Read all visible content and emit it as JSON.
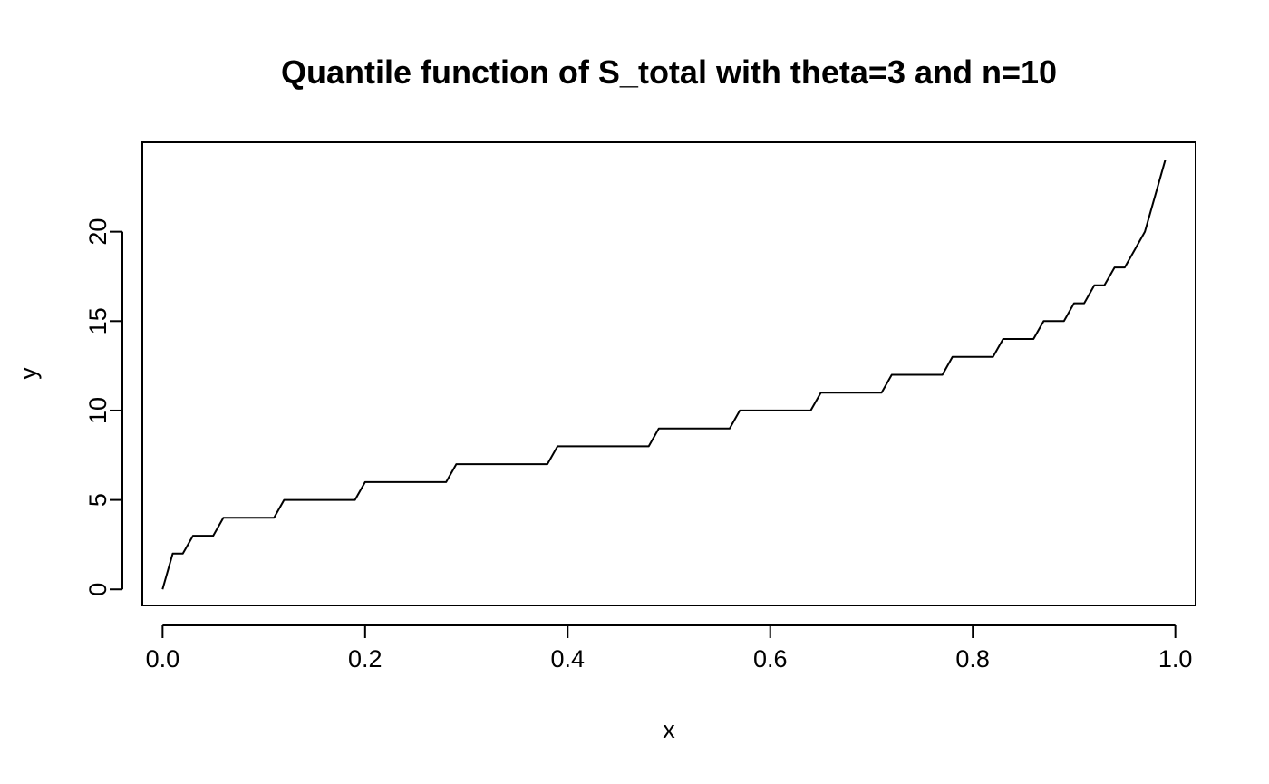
{
  "chart_data": {
    "type": "line",
    "title": "Quantile function of S_total with theta=3 and n=10",
    "xlabel": "x",
    "ylabel": "y",
    "xlim": [
      -0.02,
      1.02
    ],
    "ylim": [
      -0.9,
      25.0
    ],
    "x_ticks": [
      0.0,
      0.2,
      0.4,
      0.6,
      0.8,
      1.0
    ],
    "x_tick_labels": [
      "0.0",
      "0.2",
      "0.4",
      "0.6",
      "0.8",
      "1.0"
    ],
    "y_ticks": [
      0,
      5,
      10,
      15,
      20
    ],
    "y_tick_labels": [
      "0",
      "5",
      "10",
      "15",
      "20"
    ],
    "grid": false,
    "line_color": "#000000",
    "series": [
      {
        "x": [
          0.0,
          0.01,
          0.02,
          0.03,
          0.04,
          0.05,
          0.06,
          0.07,
          0.08,
          0.09,
          0.1,
          0.11,
          0.12,
          0.13,
          0.14,
          0.15,
          0.16,
          0.17,
          0.18,
          0.19,
          0.2,
          0.21,
          0.22,
          0.23,
          0.24,
          0.25,
          0.26,
          0.27,
          0.28,
          0.29,
          0.3,
          0.31,
          0.32,
          0.33,
          0.34,
          0.35,
          0.36,
          0.37,
          0.38,
          0.39,
          0.4,
          0.41,
          0.42,
          0.43,
          0.44,
          0.45,
          0.46,
          0.47,
          0.48,
          0.49,
          0.5,
          0.51,
          0.52,
          0.53,
          0.54,
          0.55,
          0.56,
          0.57,
          0.58,
          0.59,
          0.6,
          0.61,
          0.62,
          0.63,
          0.64,
          0.65,
          0.66,
          0.67,
          0.68,
          0.69,
          0.7,
          0.71,
          0.72,
          0.73,
          0.74,
          0.75,
          0.76,
          0.77,
          0.78,
          0.79,
          0.8,
          0.81,
          0.82,
          0.83,
          0.84,
          0.85,
          0.86,
          0.87,
          0.88,
          0.89,
          0.9,
          0.91,
          0.92,
          0.93,
          0.94,
          0.95,
          0.96,
          0.97,
          0.98,
          0.99
        ],
        "y": [
          0,
          2,
          2,
          3,
          3,
          3,
          4,
          4,
          4,
          4,
          4,
          4,
          5,
          5,
          5,
          5,
          5,
          5,
          5,
          5,
          6,
          6,
          6,
          6,
          6,
          6,
          6,
          6,
          6,
          7,
          7,
          7,
          7,
          7,
          7,
          7,
          7,
          7,
          7,
          8,
          8,
          8,
          8,
          8,
          8,
          8,
          8,
          8,
          8,
          9,
          9,
          9,
          9,
          9,
          9,
          9,
          9,
          10,
          10,
          10,
          10,
          10,
          10,
          10,
          10,
          11,
          11,
          11,
          11,
          11,
          11,
          11,
          12,
          12,
          12,
          12,
          12,
          12,
          13,
          13,
          13,
          13,
          13,
          14,
          14,
          14,
          14,
          15,
          15,
          15,
          16,
          16,
          17,
          17,
          18,
          18,
          19,
          20,
          22,
          24
        ]
      }
    ]
  }
}
